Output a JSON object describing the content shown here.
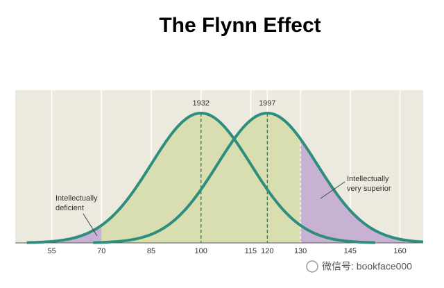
{
  "chart_data": {
    "type": "distribution",
    "title": "The Flynn Effect",
    "series": [
      {
        "name": "1932",
        "mean": 100,
        "sd": 15,
        "color": "#2e8d7d"
      },
      {
        "name": "1997",
        "mean": 120,
        "sd": 15,
        "color": "#2e8d7d"
      }
    ],
    "xlim": [
      44,
      167
    ],
    "xticks": [
      55,
      70,
      85,
      100,
      115,
      120,
      130,
      145,
      160
    ],
    "thresholds": [
      70,
      130
    ],
    "annotations": [
      {
        "lines": [
          "Intellectually",
          "deficient"
        ]
      },
      {
        "lines": [
          "Intellectually",
          "very superior"
        ]
      }
    ],
    "watermark": "微信号: bookface000",
    "colors": {
      "panel": "#ece9df",
      "middle": "#d8deb0",
      "extreme": "#c8b2d4",
      "gridline": "#ffffff"
    }
  }
}
